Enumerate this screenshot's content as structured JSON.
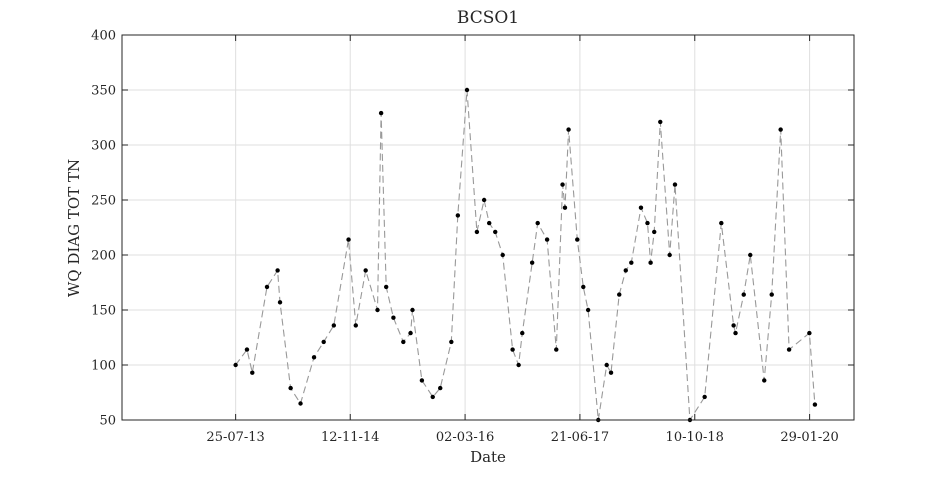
{
  "chart_data": {
    "type": "line",
    "title": "BCSO1",
    "xlabel": "Date",
    "ylabel": "WQ DIAG TOT TN",
    "ylim": [
      50,
      400
    ],
    "yticks": [
      50,
      100,
      150,
      200,
      250,
      300,
      350,
      400
    ],
    "xlim": [
      "2012-04-10",
      "2020-07-31"
    ],
    "xticks": [
      {
        "date": "2013-07-25",
        "label": "25-07-13"
      },
      {
        "date": "2014-11-12",
        "label": "12-11-14"
      },
      {
        "date": "2016-03-02",
        "label": "02-03-16"
      },
      {
        "date": "2017-06-21",
        "label": "21-06-17"
      },
      {
        "date": "2018-10-10",
        "label": "10-10-18"
      },
      {
        "date": "2020-01-29",
        "label": "29-01-20"
      }
    ],
    "grid": true,
    "line_style": "dashed",
    "line_color": "#999999",
    "marker_color": "#000000",
    "points": [
      [
        "2013-07-25",
        100
      ],
      [
        "2013-09-10",
        114
      ],
      [
        "2013-10-02",
        93
      ],
      [
        "2013-12-02",
        171
      ],
      [
        "2014-01-15",
        186
      ],
      [
        "2014-01-25",
        157
      ],
      [
        "2014-03-10",
        79
      ],
      [
        "2014-04-20",
        65
      ],
      [
        "2014-06-15",
        107
      ],
      [
        "2014-07-25",
        121
      ],
      [
        "2014-09-05",
        136
      ],
      [
        "2014-11-05",
        214
      ],
      [
        "2014-12-05",
        136
      ],
      [
        "2015-01-15",
        186
      ],
      [
        "2015-03-05",
        150
      ],
      [
        "2015-03-20",
        329
      ],
      [
        "2015-04-10",
        171
      ],
      [
        "2015-05-10",
        143
      ],
      [
        "2015-06-20",
        121
      ],
      [
        "2015-07-20",
        129
      ],
      [
        "2015-07-28",
        150
      ],
      [
        "2015-09-05",
        86
      ],
      [
        "2015-10-20",
        71
      ],
      [
        "2015-11-20",
        79
      ],
      [
        "2016-01-05",
        121
      ],
      [
        "2016-02-01",
        236
      ],
      [
        "2016-03-10",
        350
      ],
      [
        "2016-04-20",
        221
      ],
      [
        "2016-05-20",
        250
      ],
      [
        "2016-06-10",
        229
      ],
      [
        "2016-07-05",
        221
      ],
      [
        "2016-08-05",
        200
      ],
      [
        "2016-09-15",
        114
      ],
      [
        "2016-10-10",
        100
      ],
      [
        "2016-10-25",
        129
      ],
      [
        "2016-12-05",
        193
      ],
      [
        "2016-12-28",
        229
      ],
      [
        "2017-02-05",
        214
      ],
      [
        "2017-03-15",
        114
      ],
      [
        "2017-04-10",
        264
      ],
      [
        "2017-04-20",
        243
      ],
      [
        "2017-05-05",
        314
      ],
      [
        "2017-06-10",
        214
      ],
      [
        "2017-07-05",
        171
      ],
      [
        "2017-07-25",
        150
      ],
      [
        "2017-09-05",
        50
      ],
      [
        "2017-10-10",
        100
      ],
      [
        "2017-10-28",
        93
      ],
      [
        "2017-12-01",
        164
      ],
      [
        "2017-12-28",
        186
      ],
      [
        "2018-01-20",
        193
      ],
      [
        "2018-03-01",
        243
      ],
      [
        "2018-03-28",
        229
      ],
      [
        "2018-04-10",
        193
      ],
      [
        "2018-04-25",
        221
      ],
      [
        "2018-05-20",
        321
      ],
      [
        "2018-06-28",
        200
      ],
      [
        "2018-07-20",
        264
      ],
      [
        "2018-09-20",
        50
      ],
      [
        "2018-11-20",
        71
      ],
      [
        "2019-01-28",
        229
      ],
      [
        "2019-03-20",
        136
      ],
      [
        "2019-03-28",
        129
      ],
      [
        "2019-05-01",
        164
      ],
      [
        "2019-05-28",
        200
      ],
      [
        "2019-07-25",
        86
      ],
      [
        "2019-08-25",
        164
      ],
      [
        "2019-10-01",
        314
      ],
      [
        "2019-11-05",
        114
      ],
      [
        "2020-01-28",
        129
      ],
      [
        "2020-02-20",
        64
      ]
    ]
  }
}
